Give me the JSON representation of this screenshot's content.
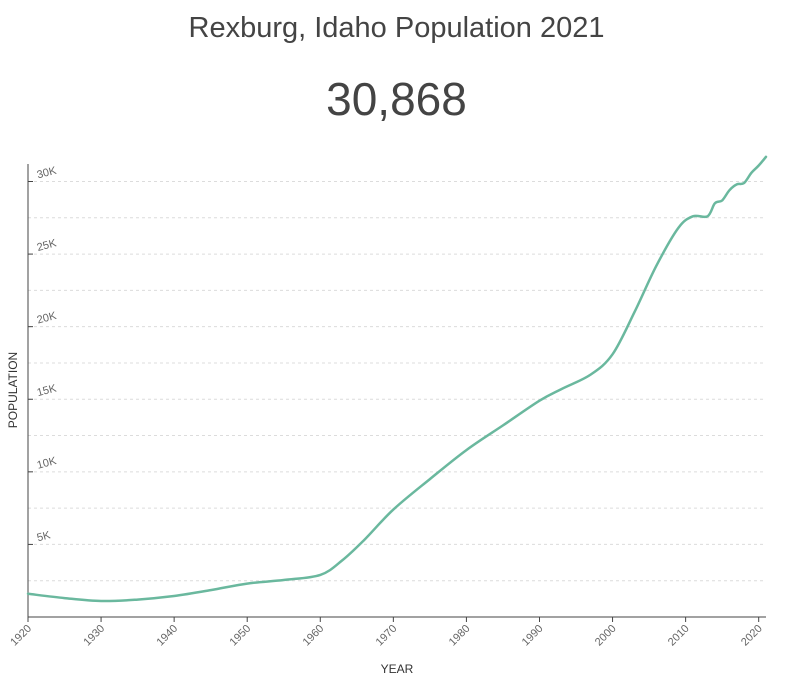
{
  "header": {
    "title": "Rexburg, Idaho Population 2021",
    "current_population": "30,868"
  },
  "chart_data": {
    "type": "line",
    "xlabel": "YEAR",
    "ylabel": "POPULATION",
    "x_ticks": [
      1920,
      1930,
      1940,
      1950,
      1960,
      1970,
      1980,
      1990,
      2000,
      2010,
      2020
    ],
    "y_ticks": [
      {
        "value": 5000,
        "label": "5K"
      },
      {
        "value": 10000,
        "label": "10K"
      },
      {
        "value": 15000,
        "label": "15K"
      },
      {
        "value": 20000,
        "label": "20K"
      },
      {
        "value": 25000,
        "label": "25K"
      },
      {
        "value": 30000,
        "label": "30K"
      }
    ],
    "xlim": [
      1920,
      2021
    ],
    "ylim": [
      0,
      30000
    ],
    "grid": true,
    "line_color": "#6ab89e",
    "series": [
      {
        "x": [
          1920,
          1925,
          1930,
          1935,
          1940,
          1945,
          1950,
          1955,
          1960,
          1963,
          1966,
          1970,
          1975,
          1980,
          1985,
          1990,
          1993,
          1997,
          2000,
          2003,
          2006,
          2009,
          2011,
          2013,
          2014,
          2015,
          2016,
          2017,
          2018,
          2019,
          2020,
          2021
        ],
        "y": [
          1600,
          1300,
          1100,
          1200,
          1450,
          1850,
          2300,
          2550,
          2900,
          3900,
          5300,
          7400,
          9500,
          11500,
          13200,
          14900,
          15700,
          16700,
          18100,
          21000,
          24200,
          26800,
          27600,
          27600,
          28500,
          28700,
          29400,
          29800,
          29900,
          30600,
          31100,
          31700
        ]
      }
    ]
  }
}
